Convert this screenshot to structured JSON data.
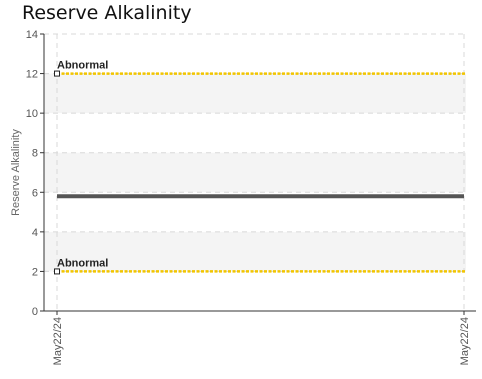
{
  "chart_data": {
    "type": "line",
    "title": "Reserve Alkalinity",
    "ylabel": "Reserve Alkalinity",
    "xlabel": "",
    "ylim": [
      0,
      14
    ],
    "yticks": [
      0,
      2,
      4,
      6,
      8,
      10,
      12,
      14
    ],
    "x_ticks": [
      "May22/24",
      "May22/24"
    ],
    "grid": true,
    "bands": [
      [
        2,
        4
      ],
      [
        6,
        8
      ],
      [
        10,
        12
      ]
    ],
    "series": [
      {
        "values": [
          5.8,
          5.8
        ],
        "color": "#555555"
      }
    ],
    "reference_lines": [
      {
        "label": "Abnormal",
        "value": 12,
        "color": "#f2c500"
      },
      {
        "label": "Abnormal",
        "value": 2,
        "color": "#f2c500"
      }
    ]
  }
}
